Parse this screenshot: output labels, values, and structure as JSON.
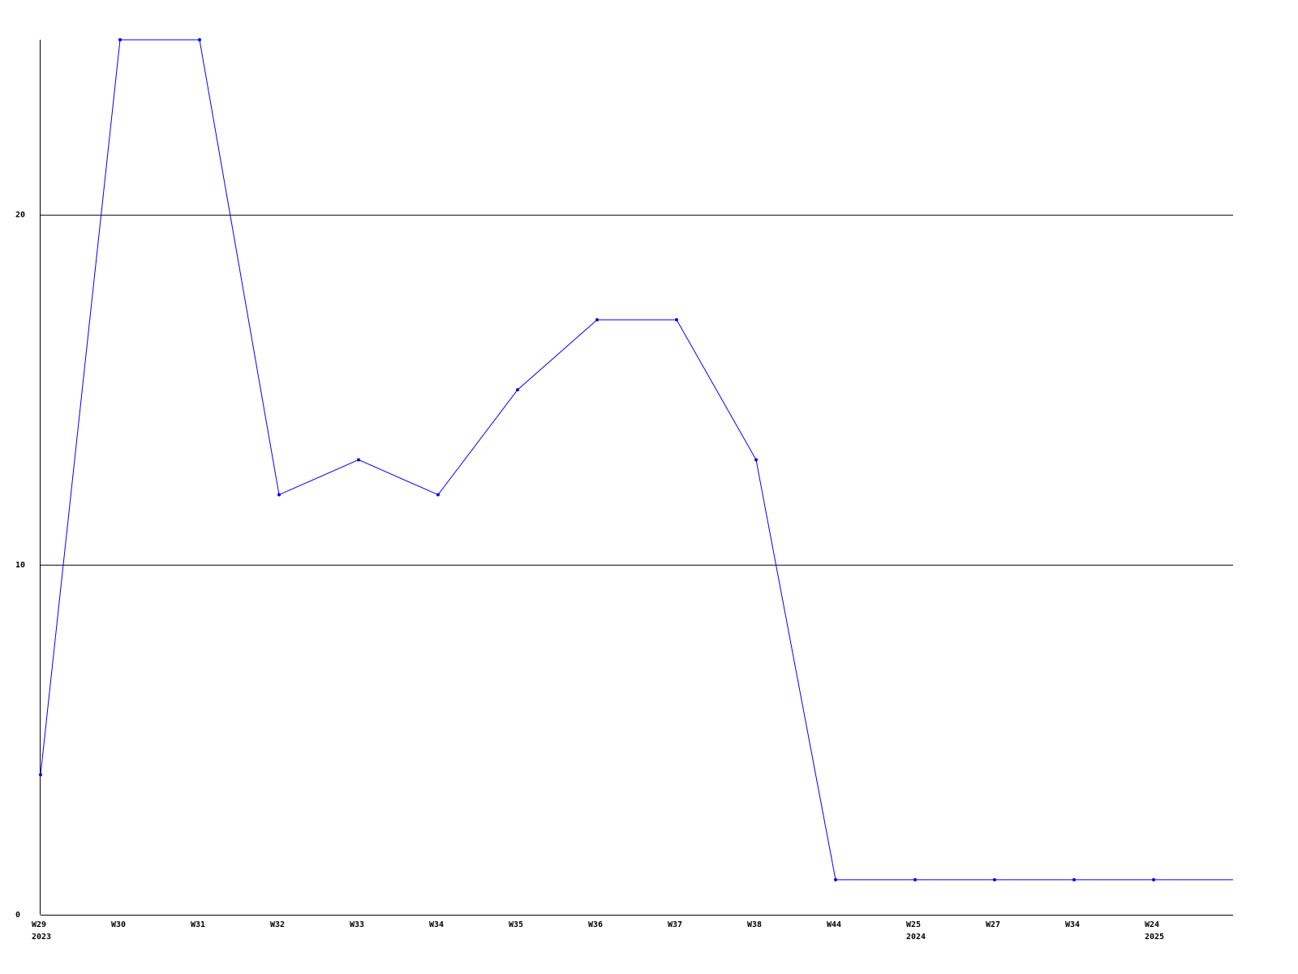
{
  "chart_data": {
    "type": "line",
    "title": "",
    "xlabel": "",
    "ylabel": "",
    "categories": [
      {
        "week": "W29",
        "year": "2023"
      },
      {
        "week": "W30",
        "year": ""
      },
      {
        "week": "W31",
        "year": ""
      },
      {
        "week": "W32",
        "year": ""
      },
      {
        "week": "W33",
        "year": ""
      },
      {
        "week": "W34",
        "year": ""
      },
      {
        "week": "W35",
        "year": ""
      },
      {
        "week": "W36",
        "year": ""
      },
      {
        "week": "W37",
        "year": ""
      },
      {
        "week": "W38",
        "year": ""
      },
      {
        "week": "W44",
        "year": ""
      },
      {
        "week": "W25",
        "year": "2024"
      },
      {
        "week": "W27",
        "year": ""
      },
      {
        "week": "W34",
        "year": ""
      },
      {
        "week": "W24",
        "year": "2025"
      }
    ],
    "series": [
      {
        "values": [
          4,
          25,
          25,
          12,
          13,
          12,
          15,
          17,
          17,
          13,
          1,
          1,
          1,
          1,
          1
        ],
        "color": "#0000ff"
      }
    ],
    "ylim": [
      0,
      25
    ],
    "yticks": [
      "0",
      "10",
      "20"
    ],
    "grid": "horizontal",
    "axis_color": "#000000"
  }
}
